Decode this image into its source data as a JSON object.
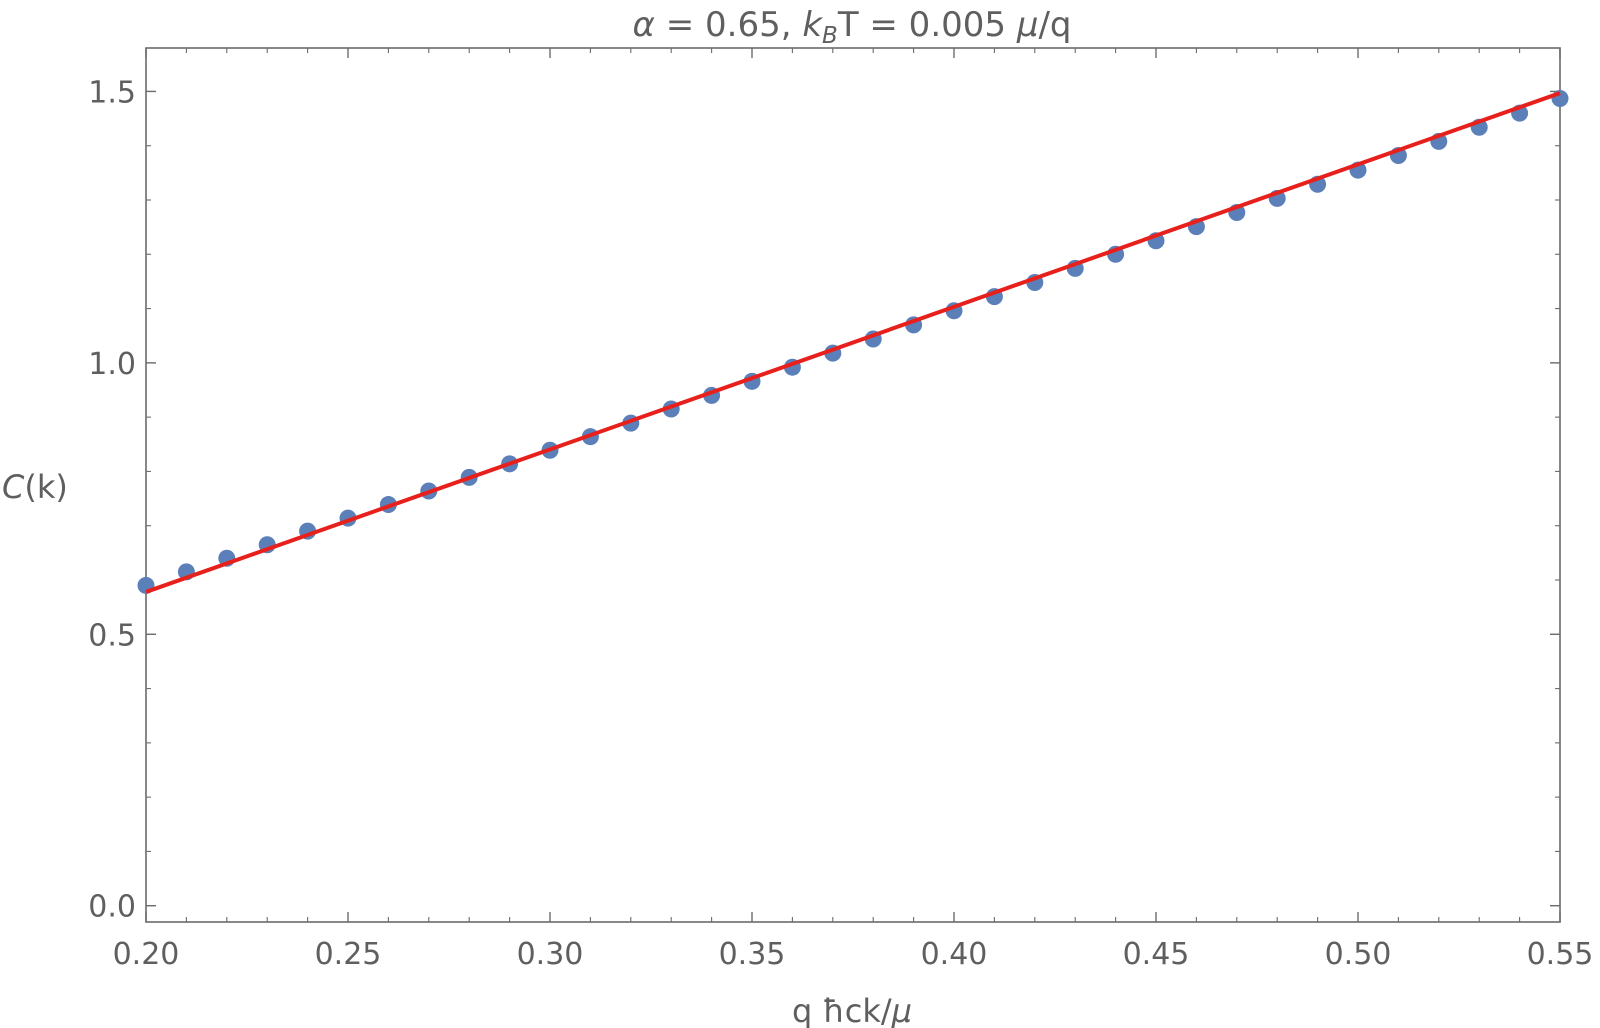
{
  "chart_data": {
    "type": "scatter",
    "title_parts": {
      "alpha_symbol": "α",
      "alpha_rest": " = 0.65, ",
      "k": "k",
      "sub": "B",
      "T_rest": "T = 0.005 ",
      "mu": "μ",
      "slash_q": "/q"
    },
    "xlabel_parts": {
      "q_hbar": "q ħ",
      "ck": "ck/",
      "mu": "μ"
    },
    "ylabel_parts": {
      "C": "C",
      "k": "(k)"
    },
    "xlim": [
      0.2,
      0.55
    ],
    "ylim": [
      -0.03,
      1.58
    ],
    "x_ticks": [
      0.2,
      0.25,
      0.3,
      0.35,
      0.4,
      0.45,
      0.5,
      0.55
    ],
    "x_tick_labels": [
      "0.20",
      "0.25",
      "0.30",
      "0.35",
      "0.40",
      "0.45",
      "0.50",
      "0.55"
    ],
    "y_ticks": [
      0.0,
      0.5,
      1.0,
      1.5
    ],
    "y_tick_labels": [
      "0.0",
      "0.5",
      "1.0",
      "1.5"
    ],
    "grid": false,
    "series": [
      {
        "kind": "points",
        "color": "#5b7fb9",
        "x": [
          0.2,
          0.21,
          0.22,
          0.23,
          0.24,
          0.25,
          0.26,
          0.27,
          0.28,
          0.29,
          0.3,
          0.31,
          0.32,
          0.33,
          0.34,
          0.35,
          0.36,
          0.37,
          0.38,
          0.39,
          0.4,
          0.41,
          0.42,
          0.43,
          0.44,
          0.45,
          0.46,
          0.47,
          0.48,
          0.49,
          0.5,
          0.51,
          0.52,
          0.53,
          0.54,
          0.55
        ],
        "y": [
          0.59,
          0.615,
          0.64,
          0.665,
          0.69,
          0.714,
          0.739,
          0.764,
          0.789,
          0.814,
          0.839,
          0.864,
          0.889,
          0.915,
          0.94,
          0.966,
          0.992,
          1.018,
          1.044,
          1.07,
          1.096,
          1.122,
          1.148,
          1.174,
          1.2,
          1.225,
          1.251,
          1.277,
          1.303,
          1.329,
          1.355,
          1.382,
          1.408,
          1.434,
          1.46,
          1.487
        ]
      },
      {
        "kind": "line",
        "color": "#e8201c",
        "x": [
          0.2,
          0.55
        ],
        "y": [
          0.578,
          1.497
        ]
      }
    ]
  }
}
